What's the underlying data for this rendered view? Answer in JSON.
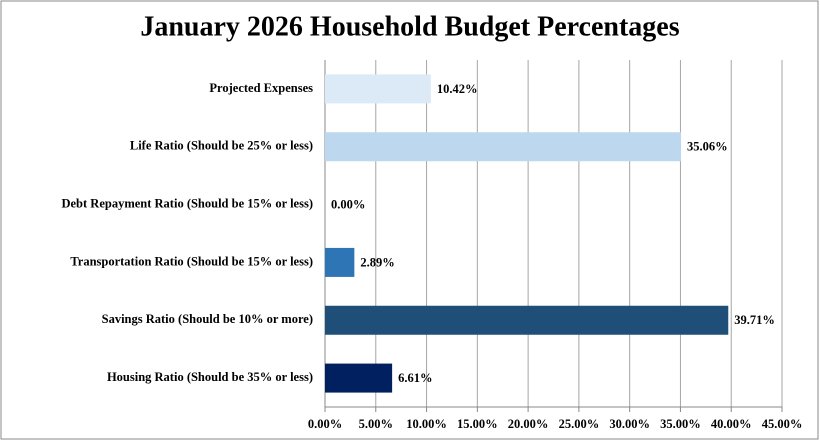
{
  "chart_data": {
    "type": "bar",
    "orientation": "horizontal",
    "title": "January 2026 Household Budget Percentages",
    "categories": [
      "Projected Expenses",
      "Life Ratio (Should be 25% or less)",
      "Debt Repayment Ratio (Should be 15% or less)",
      "Transportation Ratio (Should be 15% or less)",
      "Savings Ratio (Should be 10% or more)",
      "Housing Ratio (Should be 35% or less)"
    ],
    "values": [
      10.42,
      35.06,
      0,
      2.89,
      39.71,
      6.61
    ],
    "value_labels": [
      "10.42%",
      "35.06%",
      "0.00%",
      "2.89%",
      "39.71%",
      "6.61%"
    ],
    "colors": [
      "#dce9f6",
      "#bdd7ee",
      "#9dc3e6",
      "#2e75b6",
      "#1f4e79",
      "#002060"
    ],
    "xlim": [
      0,
      45
    ],
    "xticks": [
      {
        "value": 0,
        "label": "0.00%"
      },
      {
        "value": 5,
        "label": "5.00%"
      },
      {
        "value": 10,
        "label": "10.00%"
      },
      {
        "value": 15,
        "label": "15.00%"
      },
      {
        "value": 20,
        "label": "20.00%"
      },
      {
        "value": 25,
        "label": "25.00%"
      },
      {
        "value": 30,
        "label": "30.00%"
      },
      {
        "value": 35,
        "label": "35.00%"
      },
      {
        "value": 40,
        "label": "40.00%"
      },
      {
        "value": 45,
        "label": "45.00%"
      }
    ],
    "grid": true
  }
}
